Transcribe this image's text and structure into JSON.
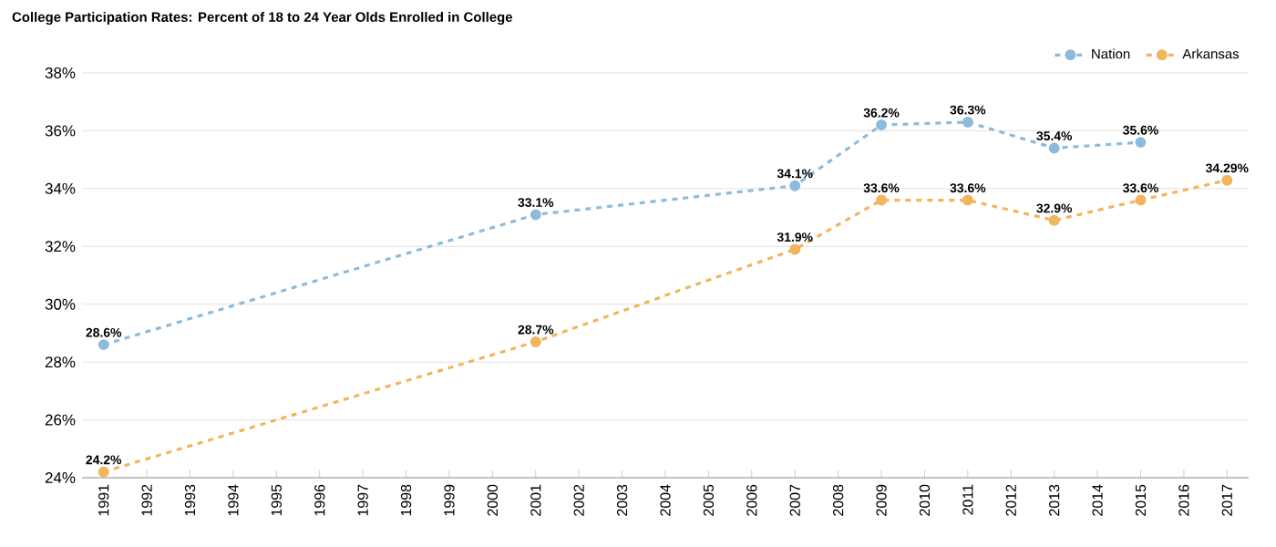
{
  "chart_data": {
    "type": "line",
    "title": "College Participation Rates: Percent of 18 to 24 Year Olds Enrolled in College",
    "categories": [
      "1991",
      "1992",
      "1993",
      "1994",
      "1995",
      "1996",
      "1997",
      "1998",
      "1999",
      "2000",
      "2001",
      "2002",
      "2003",
      "2004",
      "2005",
      "2006",
      "2007",
      "2008",
      "2009",
      "2010",
      "2011",
      "2012",
      "2013",
      "2014",
      "2015",
      "2016",
      "2017"
    ],
    "series": [
      {
        "name": "Nation",
        "color": "#8dbbdc",
        "values": [
          28.6,
          null,
          null,
          null,
          null,
          null,
          null,
          null,
          null,
          null,
          33.1,
          null,
          null,
          null,
          null,
          null,
          34.1,
          null,
          36.2,
          null,
          36.3,
          null,
          35.4,
          null,
          35.6,
          null,
          null
        ],
        "value_labels": [
          "28.6%",
          null,
          null,
          null,
          null,
          null,
          null,
          null,
          null,
          null,
          "33.1%",
          null,
          null,
          null,
          null,
          null,
          "34.1%",
          null,
          "36.2%",
          null,
          "36.3%",
          null,
          "35.4%",
          null,
          "35.6%",
          null,
          null
        ]
      },
      {
        "name": "Arkansas",
        "color": "#f1b55e",
        "values": [
          24.2,
          null,
          null,
          null,
          null,
          null,
          null,
          null,
          null,
          null,
          28.7,
          null,
          null,
          null,
          null,
          null,
          31.9,
          null,
          33.6,
          null,
          33.6,
          null,
          32.9,
          null,
          33.6,
          null,
          34.29
        ],
        "value_labels": [
          "24.2%",
          null,
          null,
          null,
          null,
          null,
          null,
          null,
          null,
          null,
          "28.7%",
          null,
          null,
          null,
          null,
          null,
          "31.9%",
          null,
          "33.6%",
          null,
          "33.6%",
          null,
          "32.9%",
          null,
          "33.6%",
          null,
          "34.29%"
        ]
      }
    ],
    "ylim": [
      24,
      38
    ],
    "yticks": [
      {
        "value": 24,
        "label": "24%"
      },
      {
        "value": 26,
        "label": "26%"
      },
      {
        "value": 28,
        "label": "28%"
      },
      {
        "value": 30,
        "label": "30%"
      },
      {
        "value": 32,
        "label": "32%"
      },
      {
        "value": 34,
        "label": "34%"
      },
      {
        "value": 36,
        "label": "36%"
      },
      {
        "value": 38,
        "label": "38%"
      }
    ],
    "grid": "y",
    "legend": "top right",
    "marker": "circle",
    "line_style": "dashed"
  }
}
